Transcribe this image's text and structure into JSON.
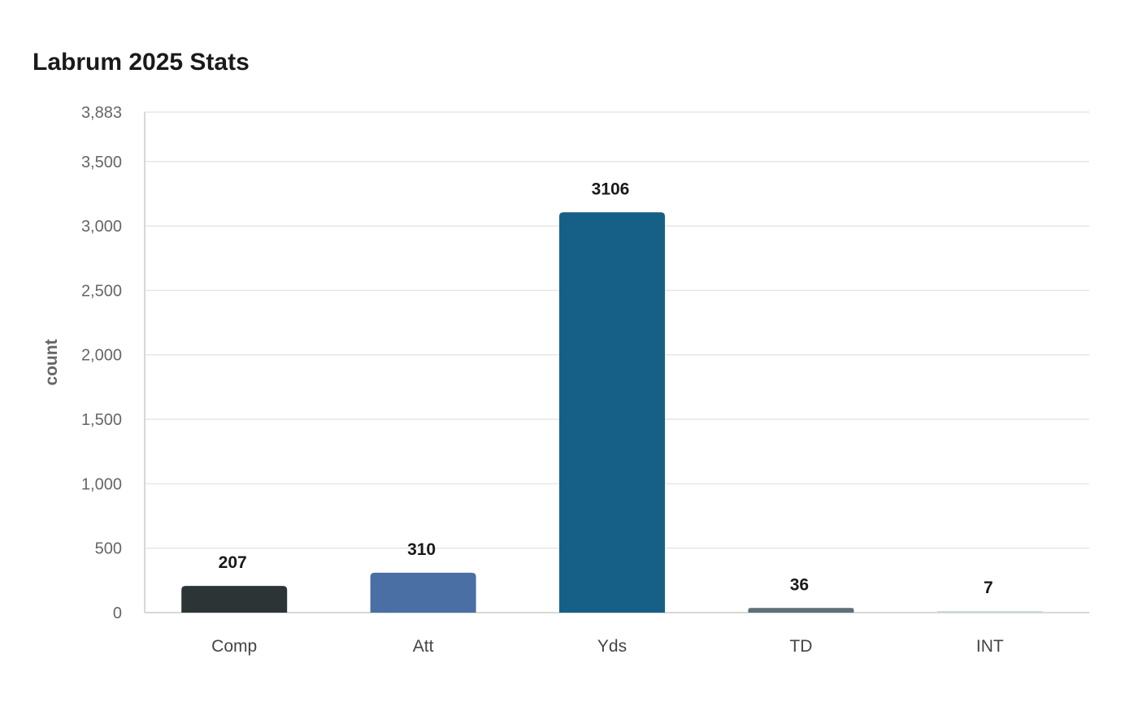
{
  "chart_data": {
    "type": "bar",
    "title": "Labrum 2025 Stats",
    "xlabel": "",
    "ylabel": "count",
    "categories": [
      "Comp",
      "Att",
      "Yds",
      "TD",
      "INT"
    ],
    "values": [
      207,
      310,
      3106,
      36,
      7
    ],
    "data_labels": [
      "207",
      "310",
      "3106",
      "36",
      "7"
    ],
    "ylim": [
      0,
      3883
    ],
    "yticks": [
      0,
      500,
      1000,
      1500,
      2000,
      2500,
      3000,
      3500,
      3883
    ],
    "ytick_labels": [
      "0",
      "500",
      "1,000",
      "1,500",
      "2,000",
      "2,500",
      "3,000",
      "3,500",
      "3,883"
    ],
    "colors": [
      "#2d3436",
      "#4a6fa5",
      "#166088",
      "#5e6f77",
      "#d0d8dc"
    ],
    "grid": true,
    "legend": "none"
  }
}
